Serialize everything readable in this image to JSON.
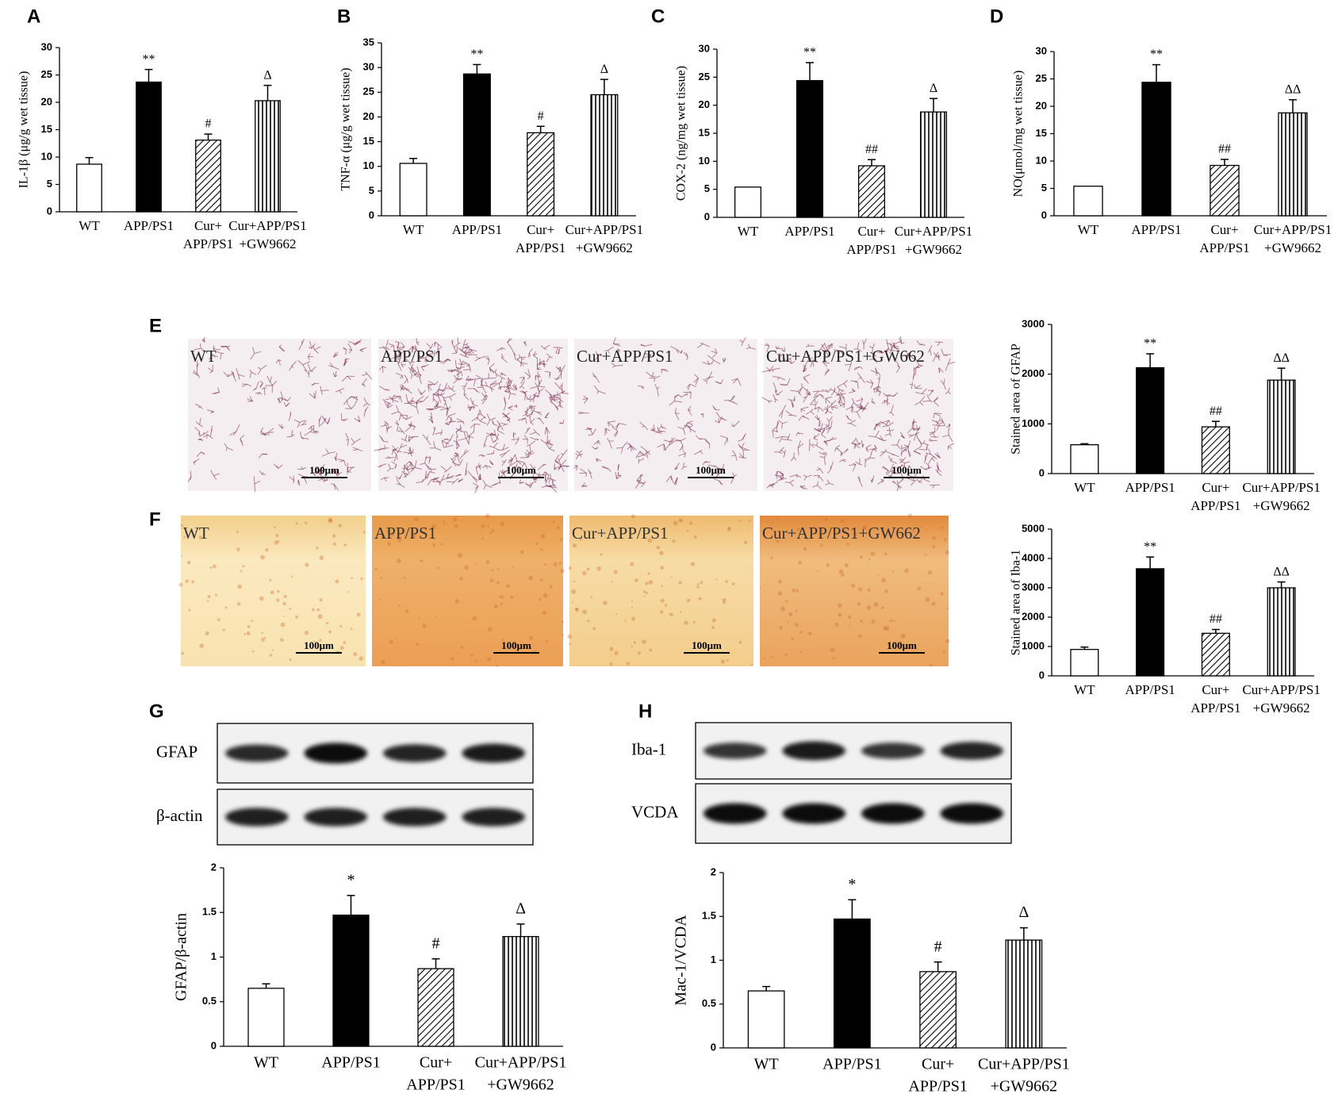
{
  "chart_data": [
    {
      "type": "bar",
      "panel": "A",
      "ylabel": "IL-1β (μg/g wet tissue)",
      "categories": [
        [
          "WT"
        ],
        [
          "APP/PS1"
        ],
        [
          "Cur+",
          "APP/PS1"
        ],
        [
          "Cur+APP/PS1",
          "+GW9662"
        ]
      ],
      "values": [
        8.7,
        23.7,
        13.1,
        20.3
      ],
      "errors": [
        1.2,
        2.3,
        1.1,
        2.8
      ],
      "annotations": [
        null,
        "**",
        "#",
        "Δ"
      ],
      "bar_fills": [
        "#ffffff",
        "#000000",
        "diagonal-hatch",
        "vertical-hatch"
      ],
      "ylim": [
        0,
        30
      ],
      "yticks": [
        0,
        5,
        10,
        15,
        20,
        25,
        30
      ]
    },
    {
      "type": "bar",
      "panel": "B",
      "ylabel": "TNF-α (μg/g wet tissue)",
      "categories": [
        [
          "WT"
        ],
        [
          "APP/PS1"
        ],
        [
          "Cur+",
          "APP/PS1"
        ],
        [
          "Cur+APP/PS1",
          "+GW9662"
        ]
      ],
      "values": [
        10.6,
        28.7,
        16.8,
        24.5
      ],
      "errors": [
        1.0,
        1.9,
        1.3,
        3.1
      ],
      "annotations": [
        null,
        "**",
        "#",
        "Δ"
      ],
      "bar_fills": [
        "#ffffff",
        "#000000",
        "diagonal-hatch",
        "vertical-hatch"
      ],
      "ylim": [
        0,
        35
      ],
      "yticks": [
        0,
        5,
        10,
        15,
        20,
        25,
        30,
        35
      ]
    },
    {
      "type": "bar",
      "panel": "C",
      "ylabel": "COX-2 (ng/mg wet tissue)",
      "categories": [
        [
          "WT"
        ],
        [
          "APP/PS1"
        ],
        [
          "Cur+",
          "APP/PS1"
        ],
        [
          "Cur+APP/PS1",
          "+GW9662"
        ]
      ],
      "values": [
        5.4,
        24.4,
        9.2,
        18.8
      ],
      "errors": [
        0,
        3.2,
        1.1,
        2.4
      ],
      "annotations": [
        null,
        "**",
        "##",
        "Δ"
      ],
      "bar_fills": [
        "#ffffff",
        "#000000",
        "diagonal-hatch",
        "vertical-hatch"
      ],
      "ylim": [
        0,
        30
      ],
      "yticks": [
        0,
        5,
        10,
        15,
        20,
        25,
        30
      ]
    },
    {
      "type": "bar",
      "panel": "D",
      "ylabel": "NO(μmol/mg wet tissue)",
      "categories": [
        [
          "WT"
        ],
        [
          "APP/PS1"
        ],
        [
          "Cur+",
          "APP/PS1"
        ],
        [
          "Cur+APP/PS1",
          "+GW9662"
        ]
      ],
      "values": [
        5.4,
        24.4,
        9.2,
        18.8
      ],
      "errors": [
        0,
        3.2,
        1.1,
        2.4
      ],
      "annotations": [
        null,
        "**",
        "##",
        "ΔΔ"
      ],
      "bar_fills": [
        "#ffffff",
        "#000000",
        "diagonal-hatch",
        "vertical-hatch"
      ],
      "ylim": [
        0,
        30
      ],
      "yticks": [
        0,
        5,
        10,
        15,
        20,
        25,
        30
      ]
    },
    {
      "type": "bar",
      "ylabel": "Stained area of GFAP",
      "categories": [
        [
          "WT"
        ],
        [
          "APP/PS1"
        ],
        [
          "Cur+",
          "APP/PS1"
        ],
        [
          "Cur+APP/PS1",
          "+GW9662"
        ]
      ],
      "values": [
        580,
        2130,
        940,
        1880
      ],
      "errors": [
        20,
        280,
        110,
        240
      ],
      "annotations": [
        null,
        "**",
        "##",
        "ΔΔ"
      ],
      "bar_fills": [
        "#ffffff",
        "#000000",
        "diagonal-hatch",
        "vertical-hatch"
      ],
      "ylim": [
        0,
        3000
      ],
      "yticks": [
        0,
        1000,
        2000,
        3000
      ]
    },
    {
      "type": "bar",
      "ylabel": "Stained area of  Iba-1",
      "categories": [
        [
          "WT"
        ],
        [
          "APP/PS1"
        ],
        [
          "Cur+",
          "APP/PS1"
        ],
        [
          "Cur+APP/PS1",
          "+GW9662"
        ]
      ],
      "values": [
        900,
        3650,
        1450,
        3000
      ],
      "errors": [
        80,
        400,
        130,
        200
      ],
      "annotations": [
        null,
        "**",
        "##",
        "ΔΔ"
      ],
      "bar_fills": [
        "#ffffff",
        "#000000",
        "diagonal-hatch",
        "vertical-hatch"
      ],
      "ylim": [
        0,
        5000
      ],
      "yticks": [
        0,
        1000,
        2000,
        3000,
        4000,
        5000
      ]
    },
    {
      "type": "bar",
      "ylabel": "GFAP/β-actin",
      "categories": [
        [
          "WT"
        ],
        [
          "APP/PS1"
        ],
        [
          "Cur+",
          "APP/PS1"
        ],
        [
          "Cur+APP/PS1",
          "+GW9662"
        ]
      ],
      "values": [
        0.65,
        1.47,
        0.87,
        1.23
      ],
      "errors": [
        0.05,
        0.22,
        0.11,
        0.14
      ],
      "annotations": [
        null,
        "*",
        "#",
        "Δ"
      ],
      "bar_fills": [
        "#ffffff",
        "#000000",
        "diagonal-hatch",
        "vertical-hatch"
      ],
      "ylim": [
        0,
        2
      ],
      "yticks": [
        0,
        0.5,
        1,
        1.5,
        2
      ]
    },
    {
      "type": "bar",
      "ylabel": "Mac-1/VCDA",
      "categories": [
        [
          "WT"
        ],
        [
          "APP/PS1"
        ],
        [
          "Cur+",
          "APP/PS1"
        ],
        [
          "Cur+APP/PS1",
          "+GW9662"
        ]
      ],
      "values": [
        0.65,
        1.47,
        0.87,
        1.23
      ],
      "errors": [
        0.05,
        0.22,
        0.11,
        0.14
      ],
      "annotations": [
        null,
        "*",
        "#",
        "Δ"
      ],
      "bar_fills": [
        "#ffffff",
        "#000000",
        "diagonal-hatch",
        "vertical-hatch"
      ],
      "ylim": [
        0,
        2
      ],
      "yticks": [
        0,
        0.5,
        1,
        1.5,
        2
      ]
    }
  ],
  "micrographs": [
    {
      "panel": "E",
      "labels": [
        "WT",
        "APP/PS1",
        "Cur+APP/PS1",
        "Cur+APP/PS1+GW662"
      ],
      "scale_bar": "100μm"
    },
    {
      "panel": "F",
      "labels": [
        "WT",
        "APP/PS1",
        "Cur+APP/PS1",
        "Cur+APP/PS1+GW662"
      ],
      "scale_bar": "100μm"
    }
  ],
  "blots": [
    {
      "panel": "G",
      "rows": [
        "GFAP",
        "β-actin"
      ]
    },
    {
      "panel": "H",
      "rows": [
        "Iba-1",
        "VCDA"
      ]
    }
  ]
}
